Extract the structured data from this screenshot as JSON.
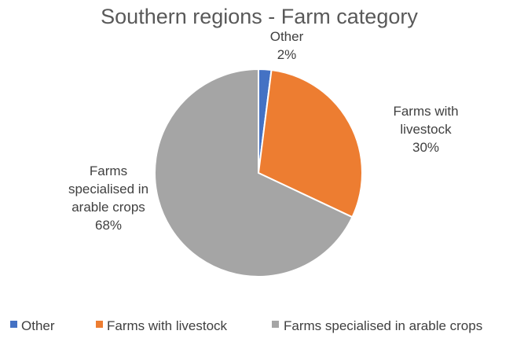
{
  "chart_data": {
    "type": "pie",
    "title": "Southern regions - Farm category",
    "categories": [
      "Other",
      "Farms with livestock",
      "Farms specialised in arable crops"
    ],
    "values": [
      2,
      30,
      68
    ],
    "value_labels": [
      "2%",
      "30%",
      "68%"
    ],
    "data_label_lines": [
      [
        "Other",
        "2%"
      ],
      [
        "Farms with",
        "livestock",
        "30%"
      ],
      [
        "Farms",
        "specialised in",
        "arable crops",
        "68%"
      ]
    ],
    "colors": [
      "#4472C4",
      "#ED7D31",
      "#A5A5A5"
    ],
    "start_angle": "12 o'clock",
    "direction": "clockwise",
    "legend_position": "bottom"
  }
}
